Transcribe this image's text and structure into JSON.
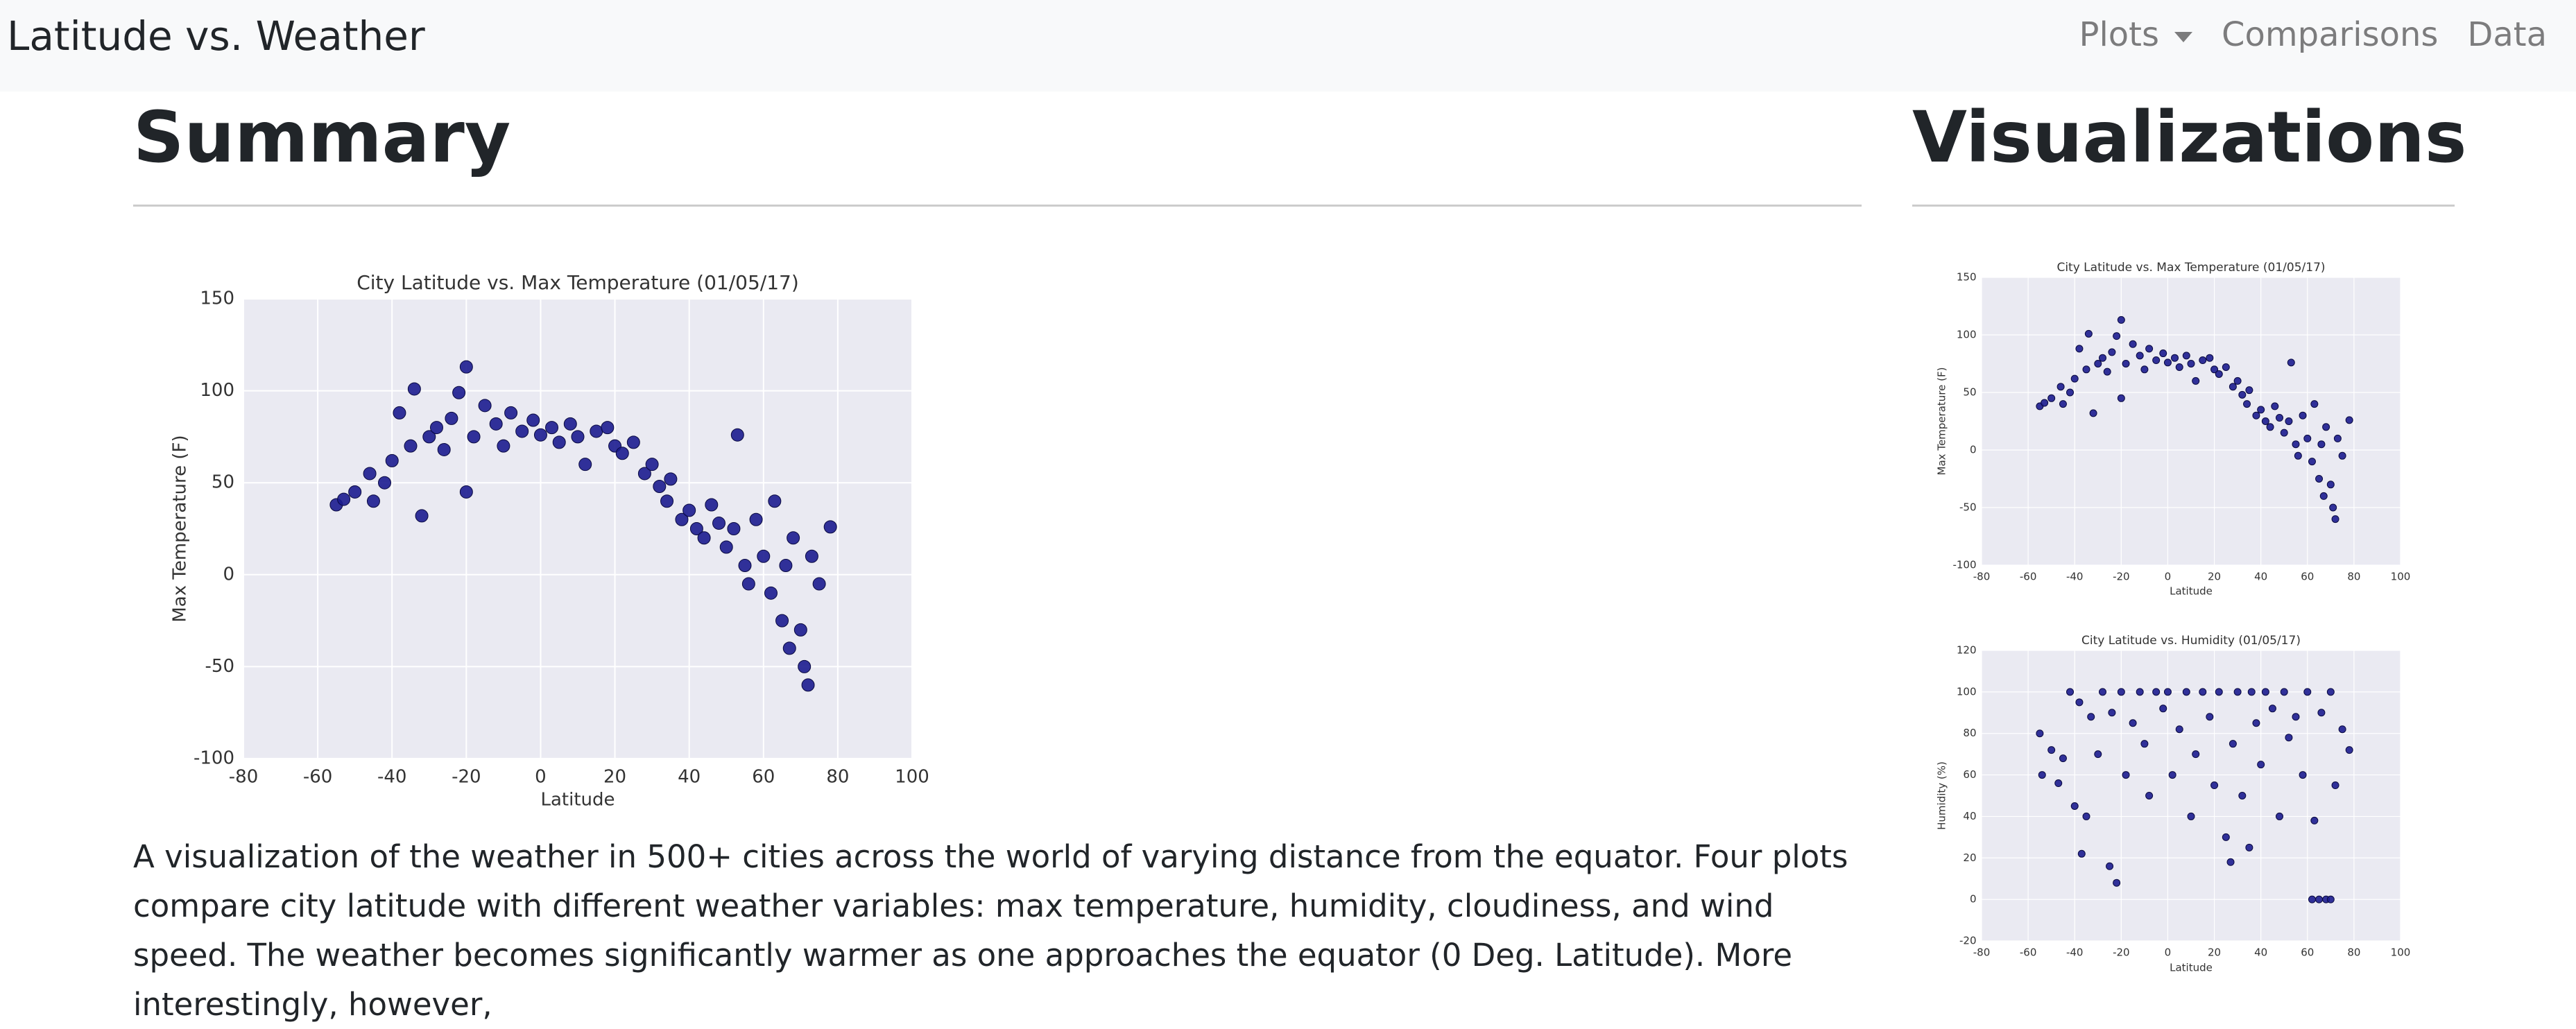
{
  "nav": {
    "brand": "Latitude vs. Weather",
    "items": [
      "Plots",
      "Comparisons",
      "Data"
    ]
  },
  "summary": {
    "heading": "Summary",
    "text": "A visualization of the weather in 500+ cities across the world of varying distance from the equator. Four plots compare city latitude with different weather variables: max temperature, humidity, cloudiness, and wind speed. The weather becomes significantly warmer as one approaches the equator (0 Deg. Latitude). More interestingly, however,"
  },
  "visualizations": {
    "heading": "Visualizations"
  },
  "chart_data": [
    {
      "type": "scatter",
      "title": "City Latitude vs. Max Temperature (01/05/17)",
      "xlabel": "Latitude",
      "ylabel": "Max Temperature (F)",
      "color": "#1c1c8f",
      "grid": true,
      "xlim": [
        -80,
        100
      ],
      "ylim": [
        -100,
        150
      ],
      "xticks": [
        -80,
        -60,
        -40,
        -20,
        0,
        20,
        40,
        60,
        80,
        100
      ],
      "yticks": [
        -100,
        -50,
        0,
        50,
        100,
        150
      ],
      "x": [
        -55,
        -53,
        -50,
        -46,
        -45,
        -42,
        -40,
        -38,
        -35,
        -34,
        -32,
        -30,
        -28,
        -26,
        -24,
        -22,
        -20,
        -20,
        -18,
        -15,
        -12,
        -10,
        -8,
        -5,
        -2,
        0,
        3,
        5,
        8,
        10,
        12,
        15,
        18,
        20,
        22,
        25,
        28,
        30,
        32,
        34,
        35,
        38,
        40,
        42,
        44,
        46,
        48,
        50,
        52,
        53,
        55,
        56,
        58,
        60,
        62,
        63,
        65,
        66,
        67,
        68,
        70,
        71,
        72,
        73,
        75,
        78
      ],
      "values": [
        38,
        41,
        45,
        55,
        40,
        50,
        62,
        88,
        70,
        101,
        32,
        75,
        80,
        68,
        85,
        99,
        113,
        45,
        75,
        92,
        82,
        70,
        88,
        78,
        84,
        76,
        80,
        72,
        82,
        75,
        60,
        78,
        80,
        70,
        66,
        72,
        55,
        60,
        48,
        40,
        52,
        30,
        35,
        25,
        20,
        38,
        28,
        15,
        25,
        76,
        5,
        -5,
        30,
        10,
        -10,
        40,
        -25,
        5,
        -40,
        20,
        -30,
        -50,
        -60,
        10,
        -5,
        26
      ]
    },
    {
      "type": "scatter",
      "title": "City Latitude vs. Max Temperature (01/05/17)",
      "xlabel": "Latitude",
      "ylabel": "Max Temperature (F)",
      "color": "#1c1c8f",
      "grid": true,
      "xlim": [
        -80,
        100
      ],
      "ylim": [
        -100,
        150
      ],
      "xticks": [
        -80,
        -60,
        -40,
        -20,
        0,
        20,
        40,
        60,
        80,
        100
      ],
      "yticks": [
        -100,
        -50,
        0,
        50,
        100,
        150
      ],
      "x": [
        -55,
        -53,
        -50,
        -46,
        -45,
        -42,
        -40,
        -38,
        -35,
        -34,
        -32,
        -30,
        -28,
        -26,
        -24,
        -22,
        -20,
        -20,
        -18,
        -15,
        -12,
        -10,
        -8,
        -5,
        -2,
        0,
        3,
        5,
        8,
        10,
        12,
        15,
        18,
        20,
        22,
        25,
        28,
        30,
        32,
        34,
        35,
        38,
        40,
        42,
        44,
        46,
        48,
        50,
        52,
        53,
        55,
        56,
        58,
        60,
        62,
        63,
        65,
        66,
        67,
        68,
        70,
        71,
        72,
        73,
        75,
        78
      ],
      "values": [
        38,
        41,
        45,
        55,
        40,
        50,
        62,
        88,
        70,
        101,
        32,
        75,
        80,
        68,
        85,
        99,
        113,
        45,
        75,
        92,
        82,
        70,
        88,
        78,
        84,
        76,
        80,
        72,
        82,
        75,
        60,
        78,
        80,
        70,
        66,
        72,
        55,
        60,
        48,
        40,
        52,
        30,
        35,
        25,
        20,
        38,
        28,
        15,
        25,
        76,
        5,
        -5,
        30,
        10,
        -10,
        40,
        -25,
        5,
        -40,
        20,
        -30,
        -50,
        -60,
        10,
        -5,
        26
      ]
    },
    {
      "type": "scatter",
      "title": "City Latitude vs. Humidity (01/05/17)",
      "xlabel": "Latitude",
      "ylabel": "Humidity (%)",
      "color": "#1c1c8f",
      "grid": true,
      "xlim": [
        -80,
        100
      ],
      "ylim": [
        -20,
        120
      ],
      "xticks": [
        -80,
        -60,
        -40,
        -20,
        0,
        20,
        40,
        60,
        80,
        100
      ],
      "yticks": [
        -20,
        0,
        20,
        40,
        60,
        80,
        100,
        120
      ],
      "x": [
        -55,
        -54,
        -50,
        -47,
        -45,
        -42,
        -40,
        -38,
        -37,
        -35,
        -33,
        -30,
        -28,
        -25,
        -24,
        -22,
        -20,
        -18,
        -15,
        -12,
        -10,
        -8,
        -5,
        -2,
        0,
        2,
        5,
        8,
        10,
        12,
        15,
        18,
        20,
        22,
        25,
        27,
        28,
        30,
        32,
        35,
        36,
        38,
        40,
        42,
        45,
        48,
        50,
        52,
        55,
        58,
        60,
        62,
        63,
        65,
        66,
        68,
        70,
        70,
        72,
        75,
        78
      ],
      "values": [
        80,
        60,
        72,
        56,
        68,
        100,
        45,
        95,
        22,
        40,
        88,
        70,
        100,
        16,
        90,
        8,
        100,
        60,
        85,
        100,
        75,
        50,
        100,
        92,
        100,
        60,
        82,
        100,
        40,
        70,
        100,
        88,
        55,
        100,
        30,
        18,
        75,
        100,
        50,
        25,
        100,
        85,
        65,
        100,
        92,
        40,
        100,
        78,
        88,
        60,
        100,
        0,
        38,
        0,
        90,
        0,
        0,
        100,
        55,
        82,
        72
      ]
    }
  ]
}
